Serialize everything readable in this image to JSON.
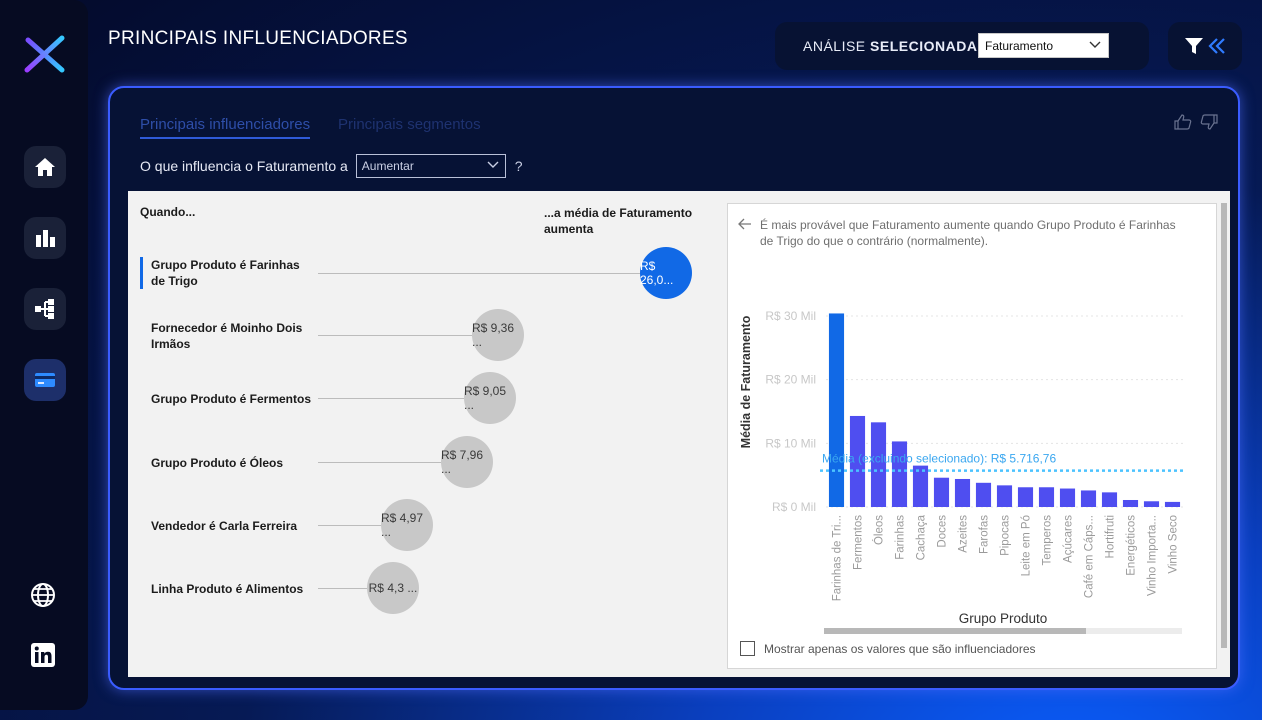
{
  "colors": {
    "accent": "#1169e6",
    "bar": "#4f4ef0",
    "bar_selected": "#1169e6",
    "avg_line": "#4cc3ff"
  },
  "sidebar": {
    "items": [
      {
        "icon": "home-icon"
      },
      {
        "icon": "bar-chart-icon"
      },
      {
        "icon": "decomposition-tree-icon"
      },
      {
        "icon": "card-icon",
        "active": true
      },
      {
        "icon": "globe-icon"
      },
      {
        "icon": "linkedin-icon"
      }
    ]
  },
  "header": {
    "title": "PRINCIPAIS INFLUENCIADORES",
    "analysis_label_regular": "ANÁLISE ",
    "analysis_label_bold": "SELECIONADA:",
    "analysis_value": "Faturamento"
  },
  "visual": {
    "tabs": [
      "Principais influenciadores",
      "Principais segmentos"
    ],
    "question_prefix": "O que influencia o Faturamento a",
    "question_value": "Aumentar",
    "question_mark": "?",
    "col_when": "Quando...",
    "col_avg": "...a média de Faturamento aumenta",
    "influencers": [
      {
        "label": "Grupo Produto é Farinhas de Trigo",
        "value": "R$ 26,0...",
        "magnitude": 26.0,
        "selected": true
      },
      {
        "label": "Fornecedor é Moinho Dois Irmãos",
        "value": "R$ 9,36 ...",
        "magnitude": 9.36
      },
      {
        "label": "Grupo Produto é Fermentos",
        "value": "R$ 9,05 ...",
        "magnitude": 9.05
      },
      {
        "label": "Grupo Produto é Óleos",
        "value": "R$ 7,96 ...",
        "magnitude": 7.96
      },
      {
        "label": "Vendedor é Carla Ferreira",
        "value": "R$ 4,97 ...",
        "magnitude": 4.97
      },
      {
        "label": "Linha Produto é Alimentos",
        "value": "R$ 4,3 ...",
        "magnitude": 4.3
      }
    ],
    "detail_text": "É mais provável que Faturamento aumente quando Grupo Produto é Farinhas de Trigo do que o contrário (normalmente).",
    "checkbox_label": "Mostrar apenas os valores que são influenciadores"
  },
  "chart_data": {
    "type": "bar",
    "ylabel": "Média de Faturamento",
    "xlabel": "Grupo Produto",
    "ytick_labels": [
      "R$ 30 Mil",
      "R$ 20 Mil",
      "R$ 10 Mil",
      "R$ 0 Mil"
    ],
    "yticks": [
      30000,
      20000,
      10000,
      0
    ],
    "ylim": [
      0,
      30000
    ],
    "grid": true,
    "categories": [
      "Farinhas de Tri...",
      "Fermentos",
      "Óleos",
      "Farinhas",
      "Cachaça",
      "Doces",
      "Azeites",
      "Farofas",
      "Pipocas",
      "Leite em Pó",
      "Temperos",
      "Açúcares",
      "Café em Cáps...",
      "Hortifruti",
      "Energéticos",
      "Vinho Importa...",
      "Vinho Seco"
    ],
    "values": [
      30400,
      14300,
      13300,
      10300,
      6500,
      4600,
      4400,
      3800,
      3400,
      3100,
      3100,
      2900,
      2600,
      2300,
      1100,
      900,
      800
    ],
    "selected_index": 0,
    "reference_line": {
      "label": "Média (excluindo selecionado): R$ 5.716,76",
      "value": 5716.76
    }
  }
}
